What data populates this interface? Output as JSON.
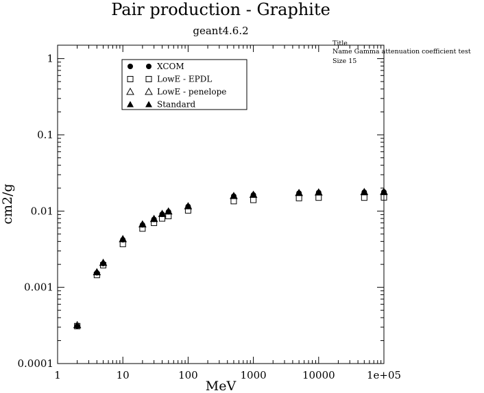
{
  "chart_data": {
    "type": "scatter",
    "title": "Pair production - Graphite",
    "subtitle": "geant4.6.2",
    "xlabel": "MeV",
    "ylabel": "cm2/g",
    "xscale": "log",
    "yscale": "log",
    "xlim": [
      1,
      100000
    ],
    "ylim": [
      0.0001,
      1.5
    ],
    "x_tick_labels": [
      "1",
      "10",
      "100",
      "1000",
      "10000",
      "1e+05"
    ],
    "y_tick_labels": [
      "0.0001",
      "0.001",
      "0.01",
      "0.1",
      "1"
    ],
    "grid": false,
    "legend_position": "top-left",
    "series": [
      {
        "name": "XCOM",
        "marker": "filled-circle",
        "x": [
          2,
          4,
          5,
          10,
          20,
          30,
          40,
          50,
          100,
          500,
          1000,
          5000,
          10000,
          50000,
          100000
        ],
        "y": [
          0.00031,
          0.00155,
          0.00205,
          0.0042,
          0.0066,
          0.0078,
          0.0091,
          0.0098,
          0.0115,
          0.0157,
          0.0163,
          0.0172,
          0.0175,
          0.0177,
          0.0178
        ]
      },
      {
        "name": "LowE - EPDL",
        "marker": "open-square",
        "x": [
          2,
          4,
          5,
          10,
          20,
          30,
          40,
          50,
          100,
          500,
          1000,
          5000,
          10000,
          50000,
          100000
        ],
        "y": [
          0.00031,
          0.00145,
          0.00195,
          0.0037,
          0.0059,
          0.007,
          0.008,
          0.0086,
          0.0102,
          0.0135,
          0.014,
          0.0148,
          0.015,
          0.015,
          0.0151
        ]
      },
      {
        "name": "LowE - penelope",
        "marker": "open-triangle",
        "x": [
          2,
          4,
          5,
          10,
          20,
          30,
          40,
          50,
          100,
          500,
          1000,
          5000,
          10000,
          50000,
          100000
        ],
        "y": [
          0.00032,
          0.00158,
          0.0021,
          0.0043,
          0.0067,
          0.0079,
          0.0092,
          0.0099,
          0.0116,
          0.0158,
          0.0164,
          0.0173,
          0.0176,
          0.0178,
          0.0179
        ]
      },
      {
        "name": "Standard",
        "marker": "filled-triangle",
        "x": [
          4,
          5,
          10,
          20,
          30,
          40,
          50,
          100,
          500,
          1000,
          5000,
          10000,
          50000,
          100000
        ],
        "y": [
          0.0016,
          0.0021,
          0.0043,
          0.0067,
          0.0079,
          0.0093,
          0.01,
          0.0117,
          0.016,
          0.0165,
          0.0175,
          0.0177,
          0.0179,
          0.018
        ]
      }
    ],
    "annotations": [
      "Title",
      "Name  Gamma attenuation coefficient test",
      "Size  15"
    ]
  }
}
